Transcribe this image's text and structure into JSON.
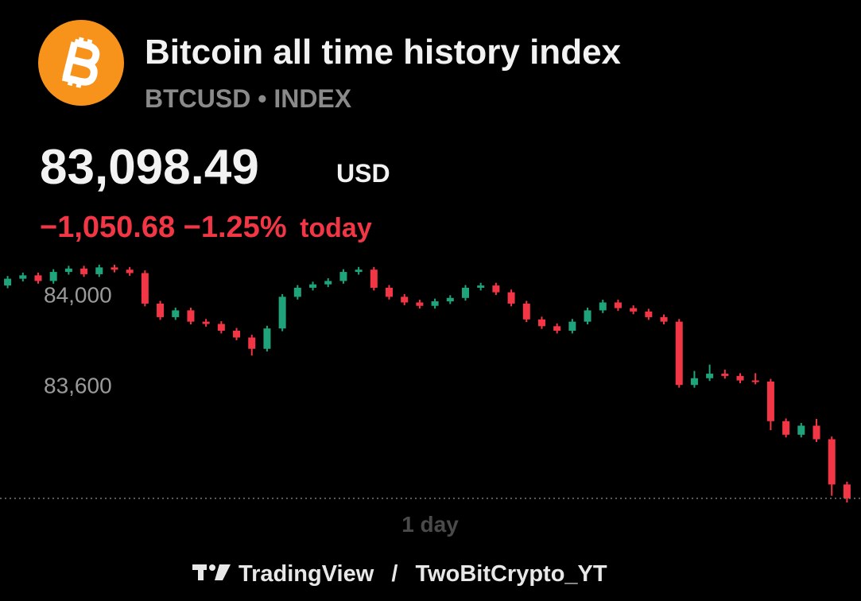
{
  "header": {
    "title": "Bitcoin all time history index",
    "subtitle": "BTCUSD • INDEX",
    "price": "83,098.49",
    "currency": "USD",
    "change": "−1,050.68 −1.25%",
    "change_period": "today"
  },
  "chart_data": {
    "type": "candlestick",
    "ylim": [
      83070,
      84160
    ],
    "yticks": [
      {
        "value": 84000,
        "label": "84,000"
      },
      {
        "value": 83600,
        "label": "83,600"
      }
    ],
    "last_price": 83098.49,
    "up_color": "#1fa37a",
    "down_color": "#f23645",
    "open": [
      84040,
      84070,
      84085,
      84060,
      84100,
      84115,
      84090,
      84120,
      84110,
      84095,
      83960,
      83900,
      83930,
      83880,
      83870,
      83840,
      83810,
      83760,
      83850,
      83990,
      84030,
      84045,
      84060,
      84100,
      84110,
      84030,
      83990,
      83965,
      83950,
      83970,
      83985,
      84030,
      84040,
      84010,
      83960,
      83890,
      83860,
      83840,
      83880,
      83930,
      83965,
      83940,
      83925,
      83900,
      83880,
      83600,
      83630,
      83650,
      83640,
      83620,
      83615,
      83440,
      83380,
      83420,
      83360,
      83160
    ],
    "high": [
      84082,
      84097,
      84097,
      84112,
      84127,
      84127,
      84132,
      84132,
      84122,
      84107,
      83972,
      83942,
      83942,
      83892,
      83882,
      83852,
      83822,
      83862,
      84002,
      84042,
      84057,
      84072,
      84112,
      84122,
      84122,
      84042,
      84002,
      83977,
      83982,
      83997,
      84042,
      84052,
      84052,
      84022,
      83972,
      83902,
      83872,
      83892,
      83942,
      83977,
      83977,
      83952,
      83937,
      83912,
      83892,
      83662,
      83690,
      83668,
      83652,
      83652,
      83627,
      83452,
      83432,
      83450,
      83372,
      83172
    ],
    "low": [
      84028,
      84058,
      84048,
      84048,
      84088,
      84078,
      84078,
      84098,
      84083,
      83948,
      83888,
      83888,
      83868,
      83858,
      83828,
      83798,
      83730,
      83748,
      83838,
      83978,
      84018,
      84033,
      84048,
      84088,
      84018,
      83978,
      83953,
      83938,
      83938,
      83958,
      83973,
      84018,
      83998,
      83948,
      83878,
      83848,
      83828,
      83828,
      83868,
      83918,
      83928,
      83913,
      83888,
      83868,
      83588,
      83588,
      83618,
      83628,
      83608,
      83603,
      83400,
      83368,
      83368,
      83348,
      83110,
      83080
    ],
    "close": [
      84070,
      84085,
      84060,
      84100,
      84115,
      84090,
      84120,
      84110,
      84095,
      83960,
      83900,
      83930,
      83880,
      83870,
      83840,
      83810,
      83760,
      83850,
      83990,
      84030,
      84045,
      84060,
      84100,
      84110,
      84030,
      83990,
      83965,
      83950,
      83970,
      83985,
      84030,
      84040,
      84010,
      83960,
      83890,
      83860,
      83840,
      83880,
      83930,
      83965,
      83940,
      83925,
      83900,
      83880,
      83600,
      83630,
      83650,
      83640,
      83620,
      83615,
      83440,
      83380,
      83420,
      83360,
      83160,
      83098.49
    ],
    "range_label": "1 day"
  },
  "footer": {
    "brand": "TradingView",
    "separator": "/",
    "author": "TwoBitCrypto_YT"
  }
}
